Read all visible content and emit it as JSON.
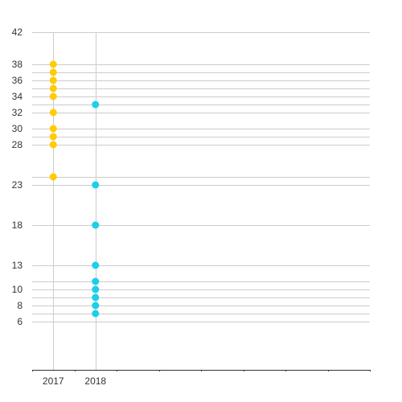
{
  "chart_data": {
    "type": "scatter",
    "title": "",
    "xlabel": "",
    "ylabel": "",
    "ylim": [
      0,
      42
    ],
    "y_ticks": [
      6,
      8,
      10,
      13,
      18,
      23,
      28,
      30,
      32,
      34,
      36,
      38,
      42
    ],
    "y_gridlines": [
      6,
      7,
      8,
      9,
      10,
      11,
      13,
      18,
      23,
      24,
      28,
      29,
      30,
      32,
      33,
      34,
      35,
      36,
      37,
      38,
      42
    ],
    "categories": [
      "2017",
      "2018"
    ],
    "x_slots": 8,
    "grid": true,
    "legend": "none",
    "series": [
      {
        "category": "2017",
        "color": "#ffcc00",
        "values": [
          38,
          37,
          36,
          35,
          34,
          32,
          30,
          29,
          28,
          24
        ]
      },
      {
        "category": "2018",
        "color": "#1ccfea",
        "values": [
          33,
          23,
          18,
          13,
          11,
          10,
          9,
          8,
          7
        ]
      }
    ]
  }
}
